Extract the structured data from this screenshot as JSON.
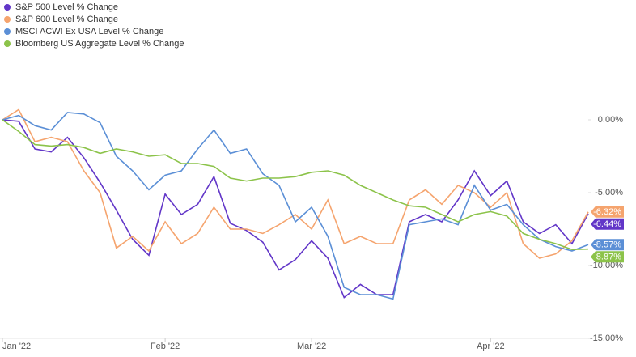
{
  "chart_data": {
    "type": "line",
    "categories": [
      "Jan '22",
      null,
      null,
      null,
      null,
      null,
      null,
      null,
      null,
      null,
      "Feb '22",
      null,
      null,
      null,
      null,
      null,
      null,
      null,
      null,
      "Mar '22",
      null,
      null,
      null,
      null,
      null,
      null,
      null,
      null,
      null,
      null,
      "Apr '22",
      null,
      null,
      null,
      null,
      null,
      null
    ],
    "series": [
      {
        "name": "S&P 500 Level % Change",
        "color": "#6236c8",
        "end_label": "-6.44%",
        "values": [
          0,
          -0.1,
          -2.0,
          -2.2,
          -1.2,
          -2.6,
          -4.3,
          -6.2,
          -8.2,
          -9.3,
          -5.1,
          -6.5,
          -5.8,
          -3.9,
          -7.1,
          -7.6,
          -8.4,
          -10.3,
          -9.6,
          -8.3,
          -9.5,
          -12.2,
          -11.3,
          -12.0,
          -12.0,
          -7.0,
          -6.5,
          -7.0,
          -5.5,
          -3.5,
          -5.2,
          -4.2,
          -7.0,
          -7.8,
          -7.2,
          -8.5,
          -6.44
        ]
      },
      {
        "name": "S&P 600 Level % Change",
        "color": "#f5a46e",
        "end_label": "-6.32%",
        "values": [
          0,
          0.7,
          -1.5,
          -1.2,
          -1.5,
          -3.5,
          -5.0,
          -8.8,
          -8.0,
          -9.0,
          -7.0,
          -8.5,
          -7.8,
          -6.0,
          -7.5,
          -7.5,
          -7.8,
          -7.2,
          -6.5,
          -7.5,
          -5.5,
          -8.5,
          -8.0,
          -8.5,
          -8.5,
          -5.5,
          -4.8,
          -5.8,
          -4.5,
          -5.0,
          -6.0,
          -5.0,
          -8.5,
          -9.5,
          -9.2,
          -8.3,
          -6.32
        ]
      },
      {
        "name": "MSCI ACWI Ex USA Level % Change",
        "color": "#5b8fd6",
        "end_label": "-8.57%",
        "values": [
          0,
          0.3,
          -0.4,
          -0.7,
          0.5,
          0.4,
          -0.2,
          -2.5,
          -3.5,
          -4.8,
          -3.8,
          -3.5,
          -2.0,
          -0.7,
          -2.3,
          -2.0,
          -3.7,
          -4.5,
          -7.0,
          -6.0,
          -8.0,
          -11.5,
          -12.0,
          -12.0,
          -12.3,
          -7.2,
          -7.0,
          -6.8,
          -7.2,
          -4.5,
          -6.2,
          -5.8,
          -7.2,
          -8.2,
          -8.7,
          -9.0,
          -8.57
        ]
      },
      {
        "name": "Bloomberg US Aggregate Level % Change",
        "color": "#8cc34a",
        "end_label": "-8.87%",
        "values": [
          0,
          -0.8,
          -1.7,
          -1.8,
          -1.7,
          -1.9,
          -2.3,
          -2.0,
          -2.2,
          -2.5,
          -2.4,
          -3.0,
          -3.0,
          -3.2,
          -4.0,
          -4.2,
          -4.0,
          -4.0,
          -3.9,
          -3.6,
          -3.5,
          -3.8,
          -4.5,
          -5.0,
          -5.5,
          -5.9,
          -6.0,
          -6.5,
          -7.0,
          -6.5,
          -6.3,
          -6.6,
          -7.8,
          -8.2,
          -8.5,
          -8.9,
          -8.87
        ]
      }
    ],
    "ylim": [
      -15,
      5
    ],
    "yticks": [
      {
        "value": 0,
        "label": "0.00%"
      },
      {
        "value": -5,
        "label": "-5.00%"
      },
      {
        "value": -10,
        "label": "-10.00%"
      },
      {
        "value": -15,
        "label": "-15.00%"
      }
    ]
  }
}
